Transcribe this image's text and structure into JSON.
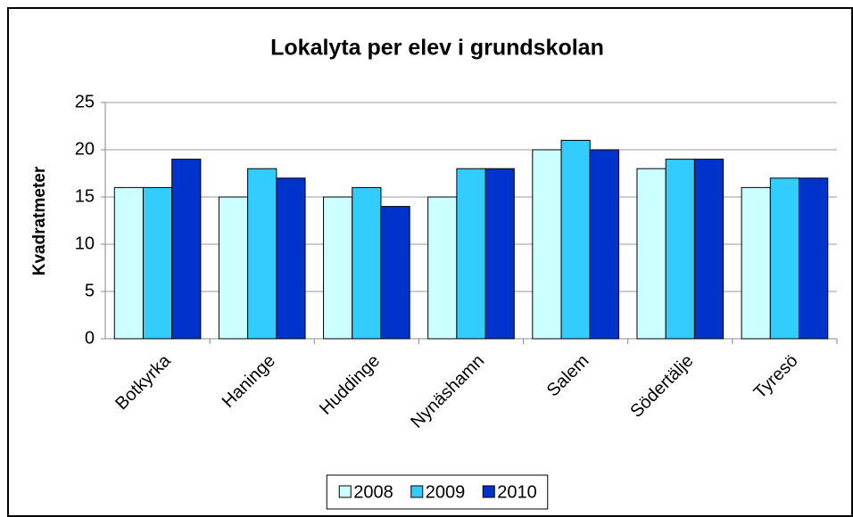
{
  "chart_data": {
    "type": "bar",
    "title": "Lokalyta per elev i grundskolan",
    "y_label": "Kvadratmeter",
    "categories": [
      "Botkyrka",
      "Haninge",
      "Huddinge",
      "Nynäshamn",
      "Salem",
      "Södertälje",
      "Tyresö"
    ],
    "series": [
      {
        "name": "2008",
        "color": "#ccffff",
        "values": [
          16,
          15,
          15,
          15,
          20,
          18,
          16
        ]
      },
      {
        "name": "2009",
        "color": "#33ccff",
        "values": [
          16,
          18,
          16,
          18,
          21,
          19,
          17
        ]
      },
      {
        "name": "2010",
        "color": "#0033cc",
        "values": [
          19,
          17,
          14,
          18,
          20,
          19,
          17
        ]
      }
    ],
    "ylim": [
      0,
      25
    ],
    "yticks": [
      0,
      5,
      10,
      15,
      20,
      25
    ],
    "grid": true,
    "legend": "bottom"
  }
}
